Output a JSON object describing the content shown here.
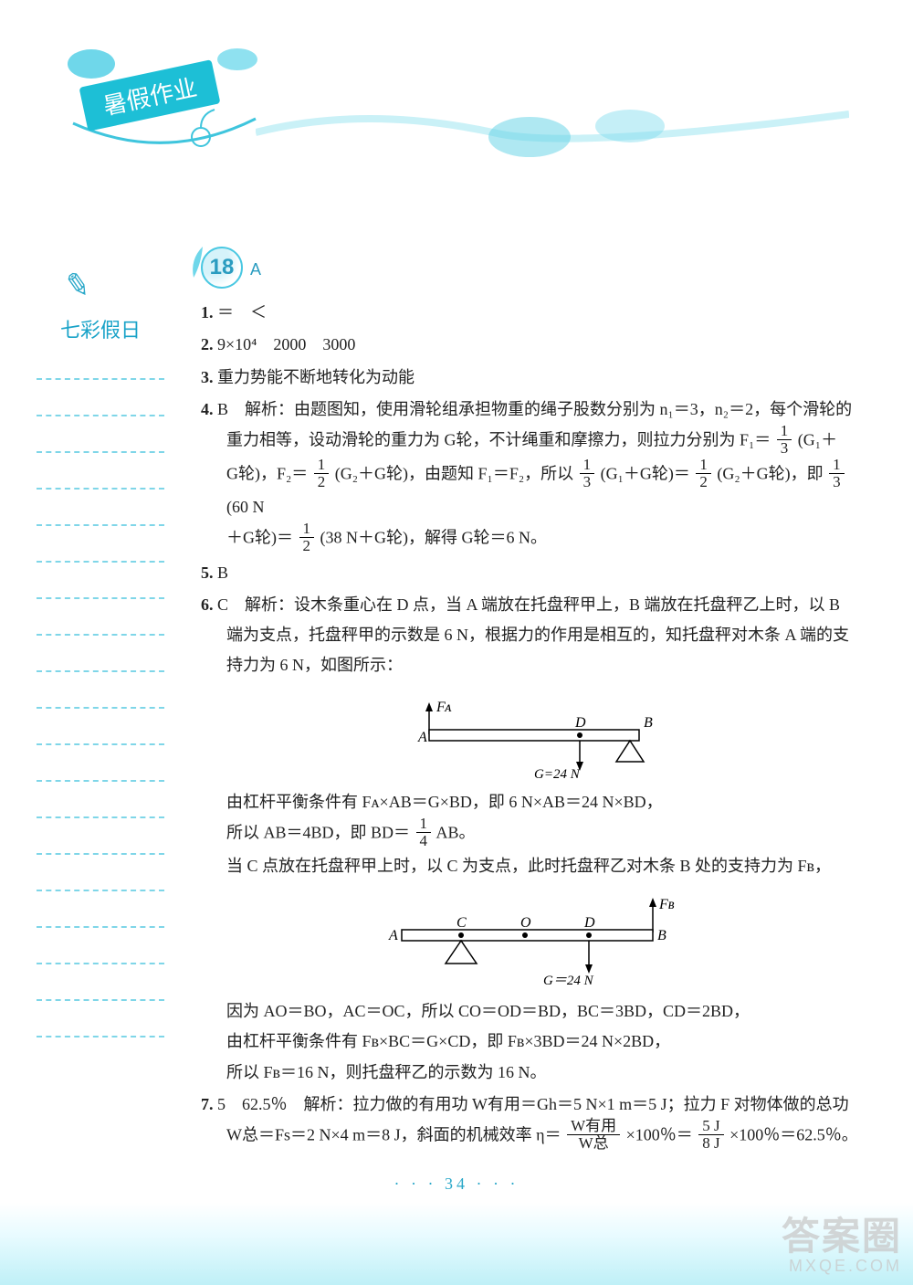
{
  "header": {
    "title": "暑假作业"
  },
  "sidebar": {
    "label": "七彩假日",
    "line_count": 19
  },
  "day": {
    "number": "18",
    "suffix": "A"
  },
  "questions": {
    "q1": {
      "num": "1.",
      "text": "＝　＜"
    },
    "q2": {
      "num": "2.",
      "text": "9×10⁴　2000　3000"
    },
    "q3": {
      "num": "3.",
      "text": "重力势能不断地转化为动能"
    },
    "q4": {
      "num": "4.",
      "ans": "B",
      "t1": "解析：由题图知，使用滑轮组承担物重的绳子股数分别为 n₁＝3，n₂＝2，每个滑轮的",
      "t2": "重力相等，设动滑轮的重力为 G轮，不计绳重和摩擦力，则拉力分别为 F₁＝",
      "f1n": "1",
      "f1d": "3",
      "t3": "(G₁＋",
      "t4": "G轮)，F₂＝",
      "f2n": "1",
      "f2d": "2",
      "t5": "(G₂＋G轮)，由题知 F₁＝F₂，所以",
      "f3n": "1",
      "f3d": "3",
      "t6": "(G₁＋G轮)＝",
      "f4n": "1",
      "f4d": "2",
      "t7": "(G₂＋G轮)，即",
      "f5n": "1",
      "f5d": "3",
      "t8": "(60 N",
      "t9": "＋G轮)＝",
      "f6n": "1",
      "f6d": "2",
      "t10": "(38 N＋G轮)，解得 G轮＝6 N。"
    },
    "q5": {
      "num": "5.",
      "ans": "B"
    },
    "q6": {
      "num": "6.",
      "ans": "C",
      "t1": "解析：设木条重心在 D 点，当 A 端放在托盘秤甲上，B 端放在托盘秤乙上时，以 B",
      "t2": "端为支点，托盘秤甲的示数是 6 N，根据力的作用是相互的，知托盘秤对木条 A 端的支",
      "t3": "持力为 6 N，如图所示：",
      "d1": {
        "FA": "Fᴀ",
        "A": "A",
        "D": "D",
        "B": "B",
        "G": "G=24 N"
      },
      "t4": "由杠杆平衡条件有 Fᴀ×AB＝G×BD，即 6 N×AB＝24 N×BD，",
      "t5a": "所以 AB＝4BD，即 BD＝",
      "f1n": "1",
      "f1d": "4",
      "t5b": "AB。",
      "t6": "当 C 点放在托盘秤甲上时，以 C 为支点，此时托盘秤乙对木条 B 处的支持力为 Fʙ，",
      "d2": {
        "A": "A",
        "C": "C",
        "O": "O",
        "D": "D",
        "B": "B",
        "FB": "Fʙ",
        "G": "G＝24 N"
      },
      "t7": "因为 AO＝BO，AC＝OC，所以 CO＝OD＝BD，BC＝3BD，CD＝2BD，",
      "t8": "由杠杆平衡条件有 Fʙ×BC＝G×CD，即 Fʙ×3BD＝24 N×2BD，",
      "t9": "所以 Fʙ＝16 N，则托盘秤乙的示数为 16 N。"
    },
    "q7": {
      "num": "7.",
      "a1": "5",
      "a2": "62.5％",
      "t1": "解析：拉力做的有用功 W有用＝Gh＝5 N×1 m＝5 J；拉力 F 对物体做的总功",
      "t2a": "W总＝Fs＝2 N×4 m＝8 J，斜面的机械效率 η＝",
      "f1n": "W有用",
      "f1d": "W总",
      "t2b": "×100％＝",
      "f2n": "5 J",
      "f2d": "8 J",
      "t2c": "×100％＝62.5％。"
    }
  },
  "page": "34",
  "watermark": {
    "big": "答案圈",
    "small": "MXQE.COM"
  }
}
